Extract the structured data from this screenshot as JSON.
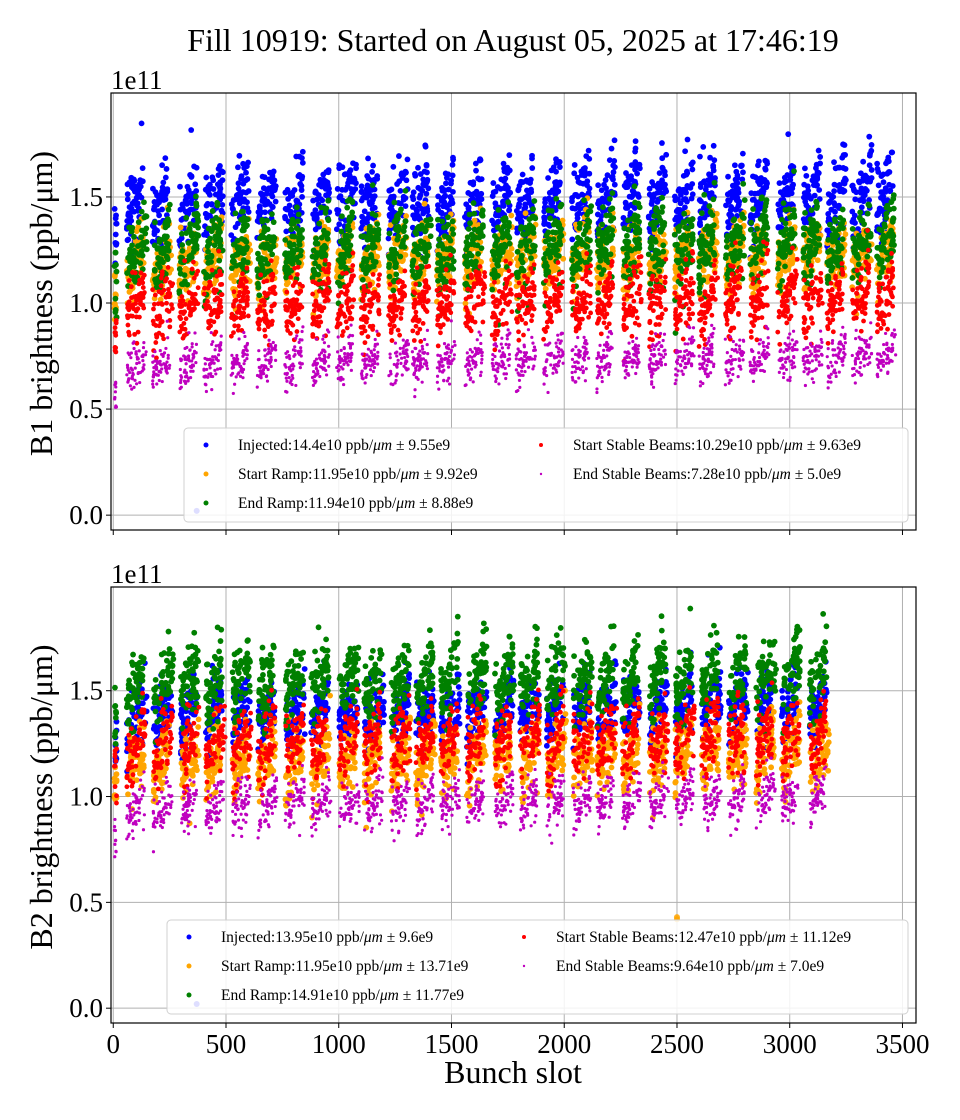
{
  "figure": {
    "title": "Fill 10919: Started on August 05, 2025 at 17:46:19",
    "xlabel": "Bunch slot"
  },
  "chart_data": [
    {
      "type": "scatter",
      "panel": "B1",
      "title": "",
      "ylabel": "B1 brightness (ppb/μm)",
      "y_multiplier": "1e11",
      "xlim": [
        -10,
        3560
      ],
      "ylim": [
        -0.07,
        1.99
      ],
      "xticks": [
        0,
        500,
        1000,
        1500,
        2000,
        2500,
        3000,
        3500
      ],
      "xtick_labels": [
        "",
        "",
        "",
        "",
        "",
        "",
        "",
        ""
      ],
      "yticks": [
        0.0,
        0.5,
        1.0,
        1.5
      ],
      "ytick_labels": [
        "0.0",
        "0.5",
        "1.0",
        "1.5"
      ],
      "grid": true,
      "legend_position": "lower-right",
      "x_range": [
        0,
        3440
      ],
      "series": [
        {
          "name": "Injected",
          "color": "#0000ff",
          "mean": 14.4,
          "std": 9.55,
          "legend": "Injected:14.4e10 ppb/",
          "unit_it": "μm",
          "pm": " ± 9.55e9",
          "band": [
            1.3,
            1.62
          ],
          "marker": "big"
        },
        {
          "name": "Start Ramp",
          "color": "#ffa500",
          "mean": 11.95,
          "std": 9.92,
          "legend": "Start Ramp:11.95e10 ppb/",
          "unit_it": "μm",
          "pm": " ± 9.92e9",
          "band": [
            1.05,
            1.32
          ],
          "marker": "big"
        },
        {
          "name": "End Ramp",
          "color": "#008000",
          "mean": 11.94,
          "std": 8.88,
          "legend": "End Ramp:11.94e10 ppb/",
          "unit_it": "μm",
          "pm": " ± 8.88e9",
          "band": [
            1.08,
            1.4
          ],
          "marker": "big"
        },
        {
          "name": "Start Stable Beams",
          "color": "#ff0000",
          "mean": 10.29,
          "std": 9.63,
          "legend": "Start Stable Beams:10.29e10 ppb/",
          "unit_it": "μm",
          "pm": " ± 9.63e9",
          "band": [
            0.85,
            1.12
          ],
          "marker": "mid"
        },
        {
          "name": "End Stable Beams",
          "color": "#bf00bf",
          "mean": 7.28,
          "std": 5.0,
          "legend": "End Stable Beams:7.28e10 ppb/",
          "unit_it": "μm",
          "pm": " ± 5.0e9",
          "band": [
            0.62,
            0.8
          ],
          "marker": "small"
        }
      ],
      "outliers": [
        {
          "x": 370,
          "y": 0.02,
          "color": "#0000ff"
        }
      ]
    },
    {
      "type": "scatter",
      "panel": "B2",
      "title": "",
      "ylabel": "B2 brightness (ppb/μm)",
      "y_multiplier": "1e11",
      "xlim": [
        -10,
        3560
      ],
      "ylim": [
        -0.07,
        1.99
      ],
      "xticks": [
        0,
        500,
        1000,
        1500,
        2000,
        2500,
        3000,
        3500
      ],
      "xtick_labels": [
        "0",
        "500",
        "1000",
        "1500",
        "2000",
        "2500",
        "3000",
        "3500"
      ],
      "yticks": [
        0.0,
        0.5,
        1.0,
        1.5
      ],
      "ytick_labels": [
        "0.0",
        "0.5",
        "1.0",
        "1.5"
      ],
      "grid": true,
      "legend_position": "lower-right",
      "x_range": [
        0,
        3240
      ],
      "series": [
        {
          "name": "Injected",
          "color": "#0000ff",
          "mean": 13.95,
          "std": 9.6,
          "legend": "Injected:13.95e10 ppb/",
          "unit_it": "μm",
          "pm": " ± 9.6e9",
          "band": [
            1.25,
            1.52
          ],
          "marker": "big"
        },
        {
          "name": "Start Ramp",
          "color": "#ffa500",
          "mean": 11.95,
          "std": 13.71,
          "legend": "Start Ramp:11.95e10 ppb/",
          "unit_it": "μm",
          "pm": " ± 13.71e9",
          "band": [
            1.02,
            1.3
          ],
          "marker": "big"
        },
        {
          "name": "End Ramp",
          "color": "#008000",
          "mean": 14.91,
          "std": 11.77,
          "legend": "End Ramp:14.91e10 ppb/",
          "unit_it": "μm",
          "pm": " ± 11.77e9",
          "band": [
            1.38,
            1.68
          ],
          "marker": "big"
        },
        {
          "name": "Start Stable Beams",
          "color": "#ff0000",
          "mean": 12.47,
          "std": 11.12,
          "legend": "Start Stable Beams:12.47e10 ppb/",
          "unit_it": "μm",
          "pm": " ± 11.12e9",
          "band": [
            1.1,
            1.38
          ],
          "marker": "mid"
        },
        {
          "name": "End Stable Beams",
          "color": "#bf00bf",
          "mean": 9.64,
          "std": 7.0,
          "legend": "End Stable Beams:9.64e10 ppb/",
          "unit_it": "μm",
          "pm": " ± 7.0e9",
          "band": [
            0.85,
            1.05
          ],
          "marker": "small"
        }
      ],
      "outliers": [
        {
          "x": 370,
          "y": 0.02,
          "color": "#0000ff"
        },
        {
          "x": 2500,
          "y": 0.43,
          "color": "#ffa500"
        },
        {
          "x": 2500,
          "y": 0.42,
          "color": "#ffa500"
        }
      ]
    }
  ]
}
